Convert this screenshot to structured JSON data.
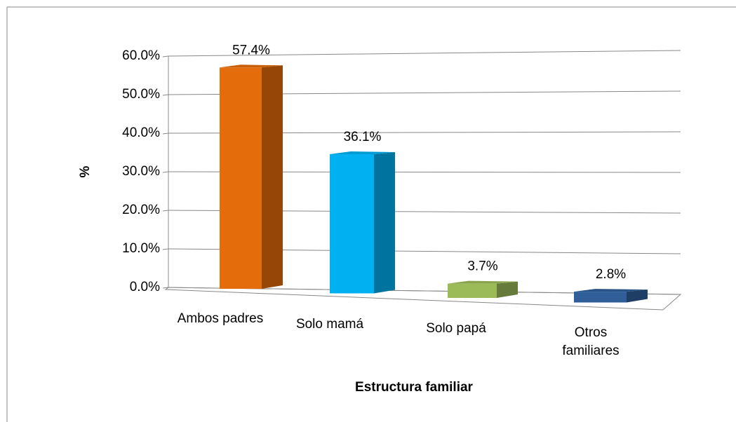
{
  "chart_data": {
    "type": "bar3d",
    "categories": [
      "Ambos padres",
      "Solo mamá",
      "Solo papá",
      "Otros familiares"
    ],
    "values": [
      57.4,
      36.1,
      3.7,
      2.8
    ],
    "value_labels": [
      "57.4%",
      "36.1%",
      "3.7%",
      "2.8%"
    ],
    "colors": [
      "#e46c0a",
      "#00b0f0",
      "#9bbb59",
      "#2f5e99"
    ],
    "ylim": [
      0,
      60
    ],
    "yticks": [
      {
        "value": 0,
        "label": "0.0%"
      },
      {
        "value": 10,
        "label": "10.0%"
      },
      {
        "value": 20,
        "label": "20.0%"
      },
      {
        "value": 30,
        "label": "30.0%"
      },
      {
        "value": 40,
        "label": "40.0%"
      },
      {
        "value": 50,
        "label": "50.0%"
      },
      {
        "value": 60,
        "label": "60.0%"
      }
    ],
    "y_label": "%",
    "x_label": "Estructura familiar",
    "grid": true
  }
}
